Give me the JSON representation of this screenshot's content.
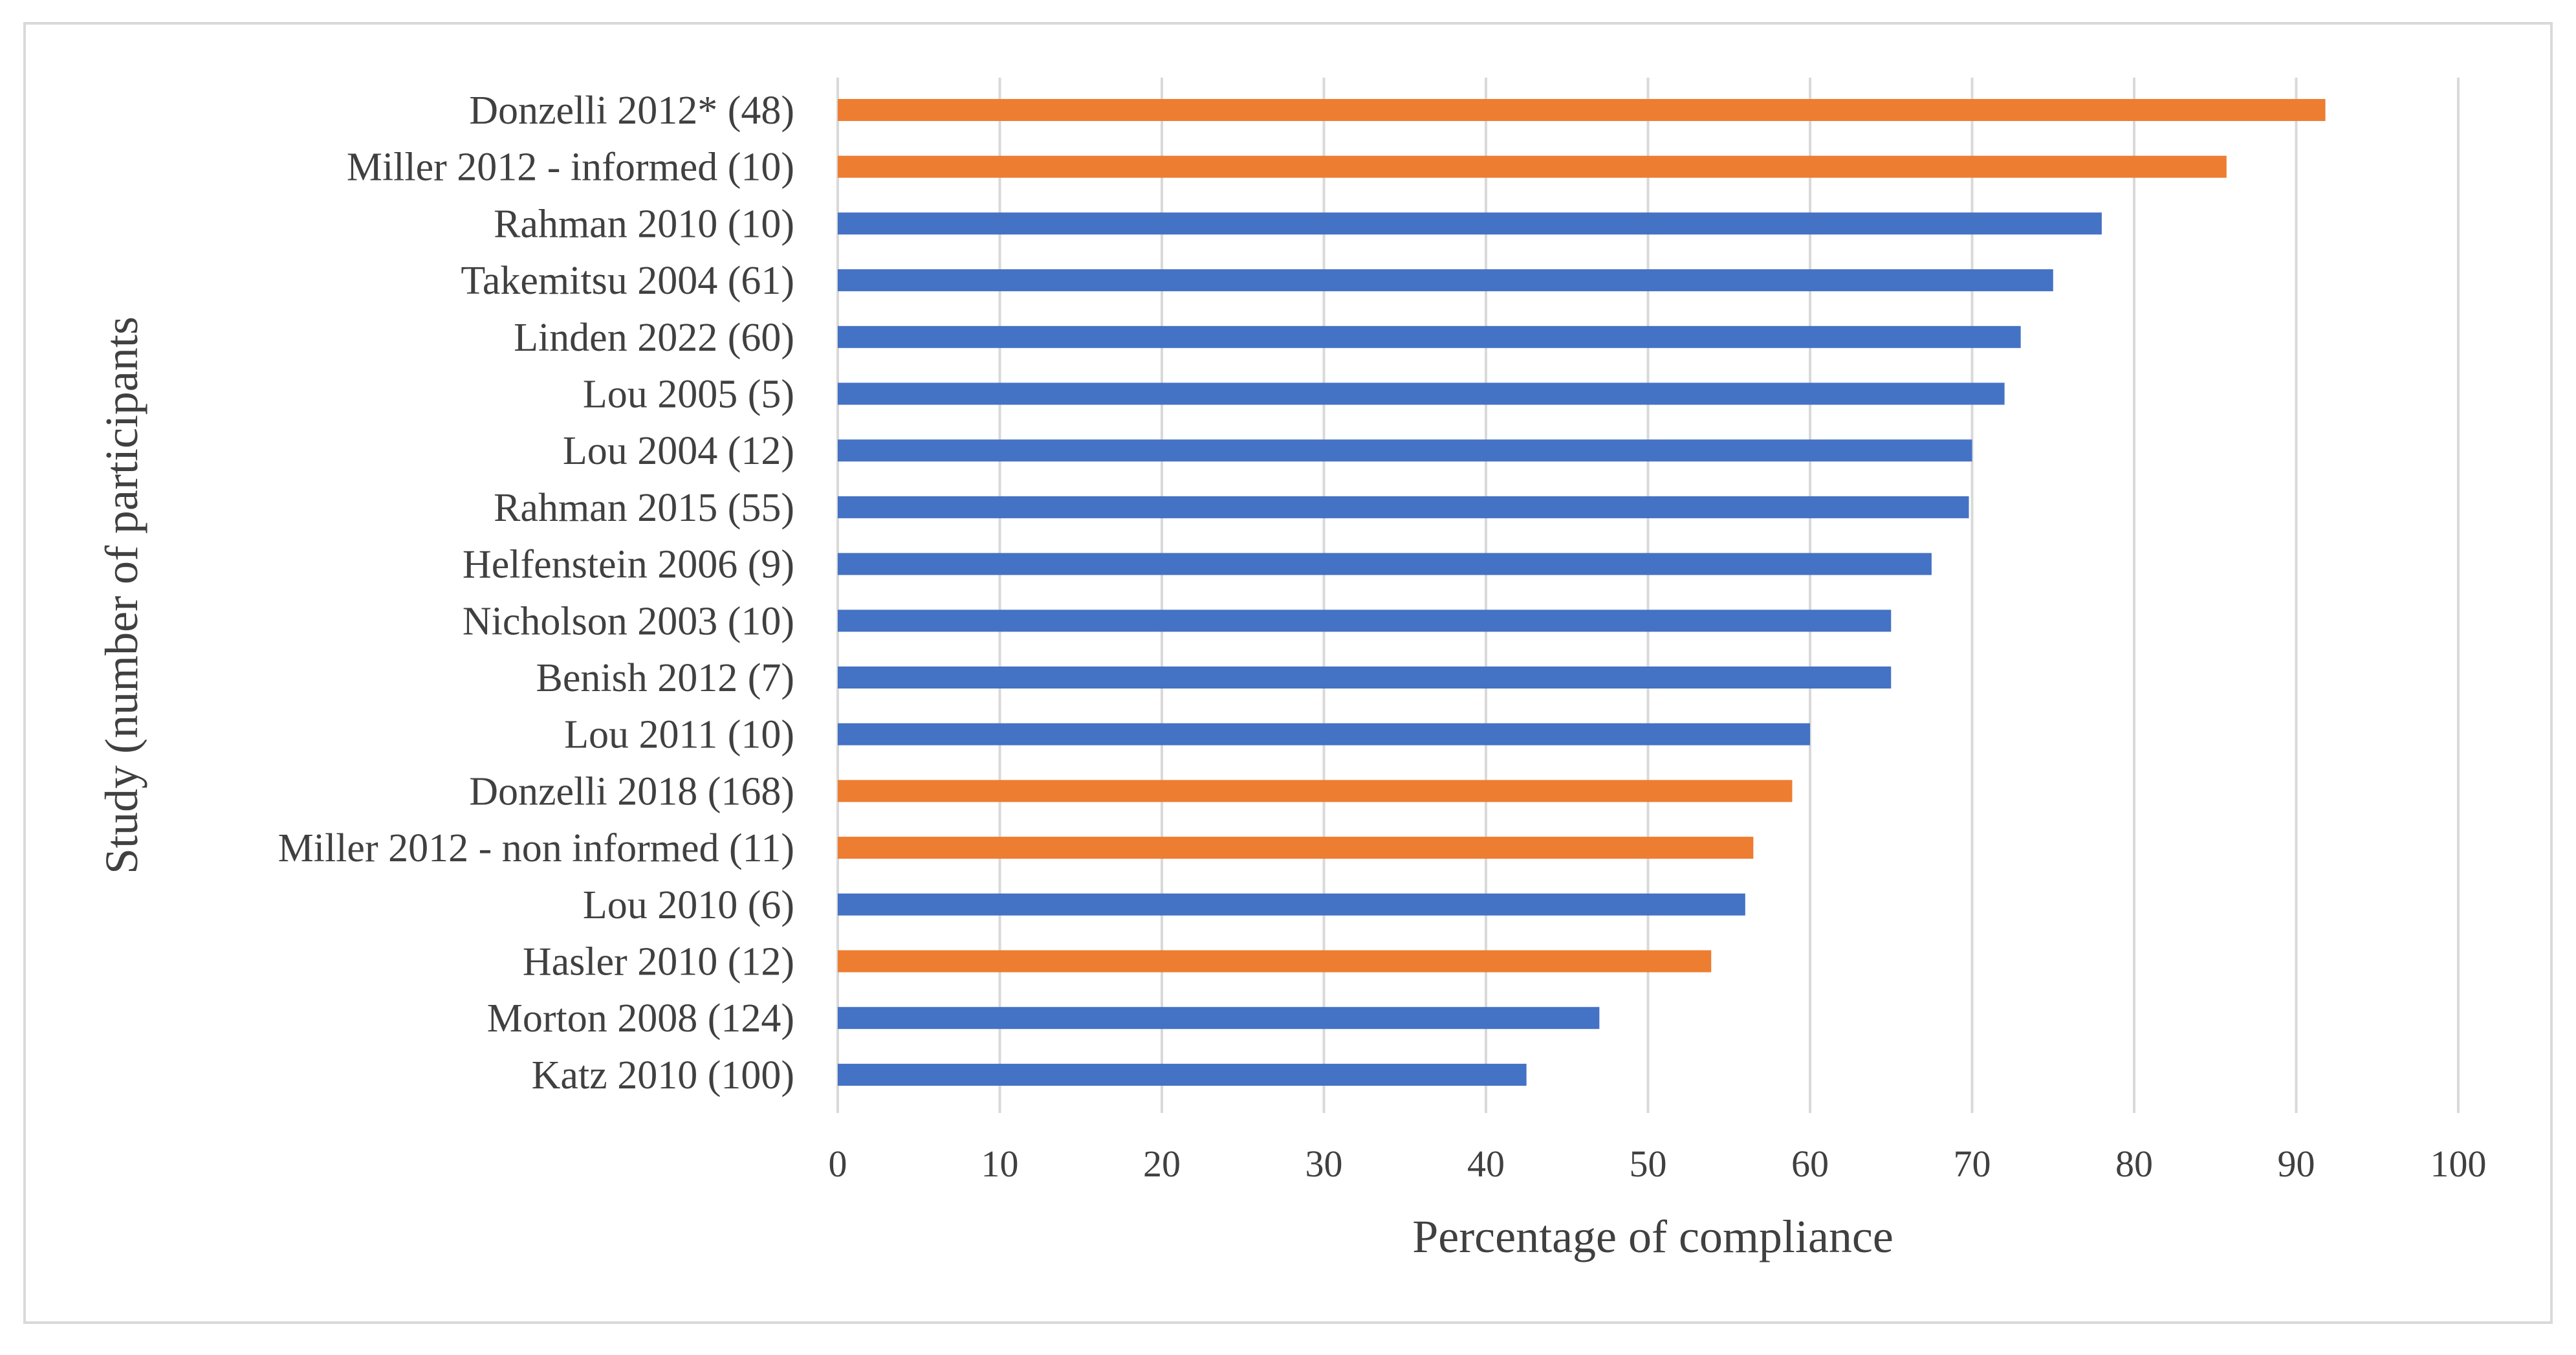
{
  "chart_data": {
    "type": "bar",
    "orientation": "horizontal",
    "title": "",
    "xlabel": "Percentage of compliance",
    "ylabel": "Study (number of participants",
    "xlim": [
      0,
      100
    ],
    "xticks": [
      0,
      10,
      20,
      30,
      40,
      50,
      60,
      70,
      80,
      90,
      100
    ],
    "grid": true,
    "legend": "none",
    "colors": {
      "blue": "#4472c4",
      "orange": "#ed7d31"
    },
    "categories": [
      "Donzelli 2012* (48)",
      "Miller 2012 - informed (10)",
      "Rahman 2010 (10)",
      "Takemitsu 2004 (61)",
      "Linden 2022 (60)",
      "Lou 2005 (5)",
      "Lou 2004 (12)",
      "Rahman 2015 (55)",
      "Helfenstein 2006 (9)",
      "Nicholson 2003 (10)",
      "Benish 2012 (7)",
      "Lou 2011 (10)",
      "Donzelli 2018 (168)",
      "Miller 2012 - non informed (11)",
      "Lou 2010 (6)",
      "Hasler 2010 (12)",
      "Morton 2008 (124)",
      "Katz 2010 (100)"
    ],
    "values": [
      91.8,
      85.7,
      78,
      75,
      73,
      72,
      70,
      69.8,
      67.5,
      65,
      65,
      60,
      58.9,
      56.5,
      56,
      53.9,
      47,
      42.5
    ],
    "bar_colors": [
      "orange",
      "orange",
      "blue",
      "blue",
      "blue",
      "blue",
      "blue",
      "blue",
      "blue",
      "blue",
      "blue",
      "blue",
      "orange",
      "orange",
      "blue",
      "orange",
      "blue",
      "blue"
    ]
  }
}
